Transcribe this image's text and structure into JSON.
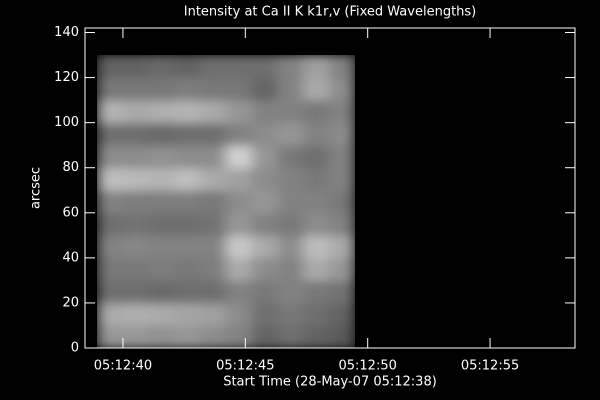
{
  "chart_data": {
    "type": "heatmap",
    "title": "Intensity at Ca II K k1r,v (Fixed Wavelengths)",
    "x_label": "Start Time (28-May-07 05:12:38)",
    "y_label": "arcsec",
    "xlim": [
      38.45,
      58.47
    ],
    "xticks": [
      {
        "value": 40,
        "label": "05:12:40"
      },
      {
        "value": 45,
        "label": "05:12:45"
      },
      {
        "value": 50,
        "label": "05:12:50"
      },
      {
        "value": 55,
        "label": "05:12:55"
      }
    ],
    "ylim": [
      0,
      142
    ],
    "yticks": [
      0,
      20,
      40,
      60,
      80,
      100,
      120,
      140
    ],
    "image_x": [
      38.94,
      49.48
    ],
    "image_y": [
      0,
      130
    ],
    "z": [
      [
        150,
        150,
        145,
        150,
        140,
        130,
        100,
        110,
        100,
        90
      ],
      [
        170,
        175,
        170,
        165,
        160,
        140,
        110,
        120,
        110,
        100
      ],
      [
        110,
        110,
        105,
        110,
        110,
        130,
        120,
        130,
        120,
        115
      ],
      [
        120,
        120,
        125,
        120,
        125,
        170,
        140,
        130,
        170,
        150
      ],
      [
        130,
        135,
        130,
        130,
        130,
        200,
        170,
        140,
        190,
        170
      ],
      [
        110,
        115,
        110,
        110,
        115,
        150,
        130,
        120,
        140,
        130
      ],
      [
        130,
        125,
        125,
        125,
        120,
        140,
        150,
        130,
        130,
        120
      ],
      [
        190,
        185,
        180,
        190,
        170,
        160,
        140,
        130,
        120,
        130
      ],
      [
        140,
        140,
        145,
        140,
        140,
        210,
        150,
        120,
        110,
        130
      ],
      [
        110,
        110,
        105,
        110,
        110,
        130,
        140,
        150,
        130,
        140
      ],
      [
        180,
        170,
        175,
        180,
        170,
        150,
        130,
        130,
        120,
        130
      ],
      [
        120,
        120,
        120,
        125,
        120,
        120,
        100,
        130,
        170,
        140
      ],
      [
        100,
        100,
        105,
        100,
        110,
        110,
        110,
        130,
        160,
        130
      ]
    ],
    "background": "#000000",
    "foreground": "#ffffff"
  }
}
